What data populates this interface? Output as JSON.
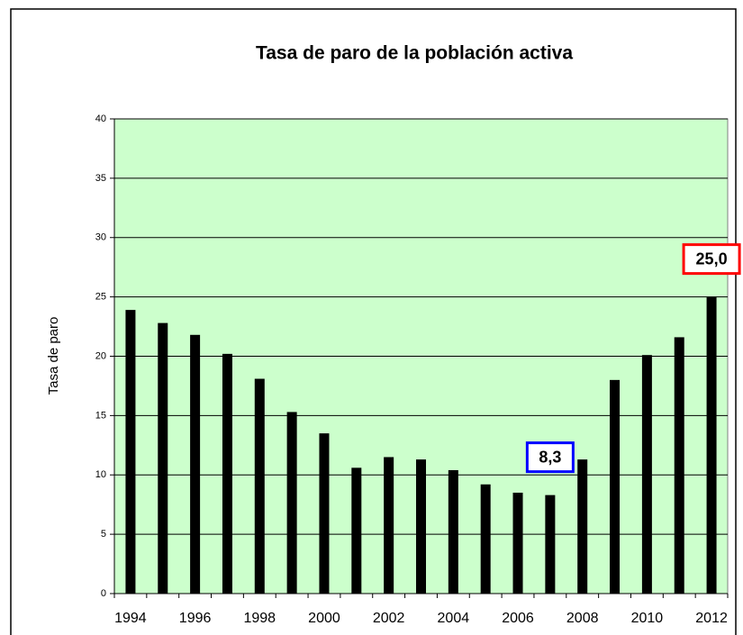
{
  "chart_data": {
    "type": "bar",
    "title": "Tasa de paro de la población activa",
    "y_label": "Tasa de paro",
    "categories": [
      "1994",
      null,
      "1996",
      null,
      "1998",
      null,
      "2000",
      null,
      "2002",
      null,
      "2004",
      null,
      "2006",
      null,
      "2008",
      null,
      "2010",
      null,
      "2012"
    ],
    "values": [
      23.9,
      22.8,
      21.8,
      20.2,
      18.1,
      15.3,
      13.5,
      10.6,
      11.5,
      11.3,
      10.4,
      9.2,
      8.5,
      8.3,
      11.3,
      18.0,
      20.1,
      21.6,
      25.0
    ],
    "value_labels": [
      null,
      null,
      null,
      null,
      null,
      null,
      null,
      null,
      null,
      null,
      null,
      null,
      null,
      "8,3",
      null,
      null,
      null,
      null,
      "25,0"
    ],
    "value_label_colors": [
      null,
      null,
      null,
      null,
      null,
      null,
      null,
      null,
      null,
      null,
      null,
      null,
      null,
      "#0000ff",
      null,
      null,
      null,
      null,
      "#ff0000"
    ],
    "color": "#000000",
    "plot_background": "#ccffcc",
    "ylim": [
      0,
      40
    ],
    "yticks": [
      0,
      5,
      10,
      15,
      20,
      25,
      30,
      35,
      40
    ],
    "grid": true
  }
}
